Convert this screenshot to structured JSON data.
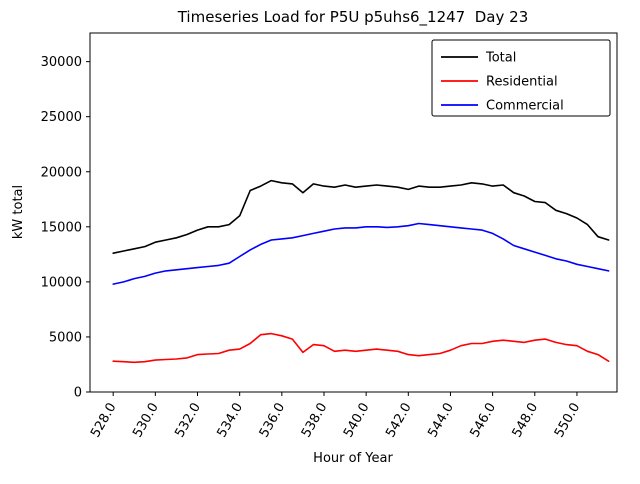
{
  "figure": {
    "background": "#ffffff"
  },
  "chart_data": {
    "type": "line",
    "title": "Timeseries Load for P5U p5uhs6_1247  Day 23",
    "xlabel": "Hour of Year",
    "ylabel": "kW total",
    "xlim": [
      526.9,
      551.9
    ],
    "ylim": [
      0,
      32600
    ],
    "grid": false,
    "legend_position": "upper right",
    "yticks": [
      0,
      5000,
      10000,
      15000,
      20000,
      25000,
      30000
    ],
    "xticks": [
      528,
      530,
      532,
      534,
      536,
      538,
      540,
      542,
      544,
      546,
      548,
      550
    ],
    "xtick_labels": [
      "528.0",
      "530.0",
      "532.0",
      "534.0",
      "536.0",
      "538.0",
      "540.0",
      "542.0",
      "544.0",
      "546.0",
      "548.0",
      "550.0"
    ],
    "x": [
      528,
      528.5,
      529,
      529.5,
      530,
      530.5,
      531,
      531.5,
      532,
      532.5,
      533,
      533.5,
      534,
      534.5,
      535,
      535.5,
      536,
      536.5,
      537,
      537.5,
      538,
      538.5,
      539,
      539.5,
      540,
      540.5,
      541,
      541.5,
      542,
      542.5,
      543,
      543.5,
      544,
      544.5,
      545,
      545.5,
      546,
      546.5,
      547,
      547.5,
      548,
      548.5,
      549,
      549.5,
      550,
      550.5,
      551,
      551.5
    ],
    "series": [
      {
        "name": "Total",
        "color": "#000000",
        "values": [
          12600,
          12800,
          13000,
          13200,
          13600,
          13800,
          14000,
          14300,
          14700,
          15000,
          15000,
          15200,
          16000,
          18300,
          18700,
          19200,
          19000,
          18900,
          18100,
          18900,
          18700,
          18600,
          18800,
          18600,
          18700,
          18800,
          18700,
          18600,
          18400,
          18700,
          18600,
          18600,
          18700,
          18800,
          19000,
          18900,
          18700,
          18800,
          18100,
          17800,
          17300,
          17200,
          16500,
          16200,
          15800,
          15200,
          14100,
          13800
        ]
      },
      {
        "name": "Residential",
        "color": "#ff0000",
        "values": [
          2800,
          2750,
          2700,
          2750,
          2900,
          2950,
          3000,
          3100,
          3400,
          3450,
          3500,
          3800,
          3900,
          4400,
          5200,
          5300,
          5100,
          4800,
          3600,
          4300,
          4200,
          3700,
          3800,
          3700,
          3800,
          3900,
          3800,
          3700,
          3400,
          3300,
          3400,
          3500,
          3800,
          4200,
          4400,
          4400,
          4600,
          4700,
          4600,
          4500,
          4700,
          4800,
          4500,
          4300,
          4200,
          3700,
          3400,
          2800
        ]
      },
      {
        "name": "Commercial",
        "color": "#0000ff",
        "values": [
          9800,
          10000,
          10300,
          10500,
          10800,
          11000,
          11100,
          11200,
          11300,
          11400,
          11500,
          11700,
          12300,
          12900,
          13400,
          13800,
          13900,
          14000,
          14200,
          14400,
          14600,
          14800,
          14900,
          14900,
          15000,
          15000,
          14950,
          15000,
          15100,
          15300,
          15200,
          15100,
          15000,
          14900,
          14800,
          14700,
          14400,
          13900,
          13300,
          13000,
          12700,
          12400,
          12100,
          11900,
          11600,
          11400,
          11200,
          11000
        ]
      }
    ]
  }
}
